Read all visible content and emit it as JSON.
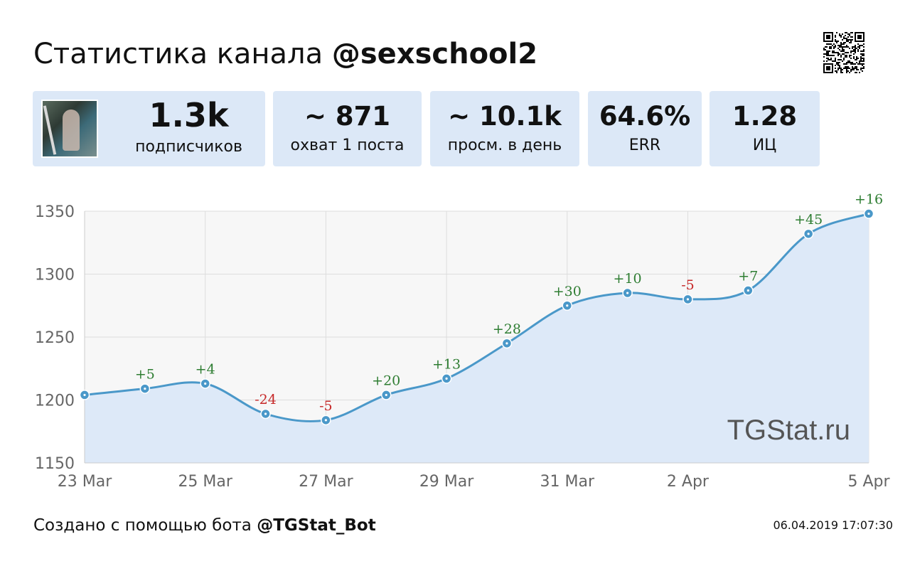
{
  "header": {
    "title_prefix": "Статистика канала ",
    "channel": "@sexschool2",
    "qr_icon": "qr-code-icon"
  },
  "stats": [
    {
      "value": "1.3k",
      "label": "подписчиков"
    },
    {
      "value": "~ 871",
      "label": "охват 1 поста"
    },
    {
      "value": "~ 10.1k",
      "label": "просм. в день"
    },
    {
      "value": "64.6%",
      "label": "ERR"
    },
    {
      "value": "1.28",
      "label": "ИЦ"
    }
  ],
  "chart_data": {
    "type": "line",
    "title": "",
    "xlabel": "",
    "ylabel": "",
    "x": [
      "23 Mar",
      "24 Mar",
      "25 Mar",
      "26 Mar",
      "27 Mar",
      "28 Mar",
      "29 Mar",
      "30 Mar",
      "31 Mar",
      "1 Apr",
      "2 Apr",
      "3 Apr",
      "4 Apr",
      "5 Apr"
    ],
    "x_tick_labels": [
      "23 Mar",
      "25 Mar",
      "27 Mar",
      "29 Mar",
      "31 Mar",
      "2 Apr",
      "5 Apr"
    ],
    "values": [
      1204,
      1209,
      1213,
      1189,
      1184,
      1204,
      1217,
      1245,
      1275,
      1285,
      1280,
      1287,
      1332,
      1348
    ],
    "point_labels": [
      "",
      "+5",
      "+4",
      "-24",
      "-5",
      "+20",
      "+13",
      "+28",
      "+30",
      "+10",
      "-5",
      "+7",
      "+45",
      "+16"
    ],
    "ylim": [
      1150,
      1350
    ],
    "yticks": [
      1150,
      1200,
      1250,
      1300,
      1350
    ],
    "grid": true,
    "watermark": "TGStat.ru",
    "colors": {
      "line": "#4a98c9",
      "area": "#dde9f8",
      "positive": "#2e7d32",
      "negative": "#c62828",
      "plot_bg": "#f7f7f7",
      "grid": "#dddddd"
    }
  },
  "footer": {
    "prefix": "Создано с помощью бота ",
    "bot": "@TGStat_Bot",
    "timestamp": "06.04.2019 17:07:30"
  }
}
